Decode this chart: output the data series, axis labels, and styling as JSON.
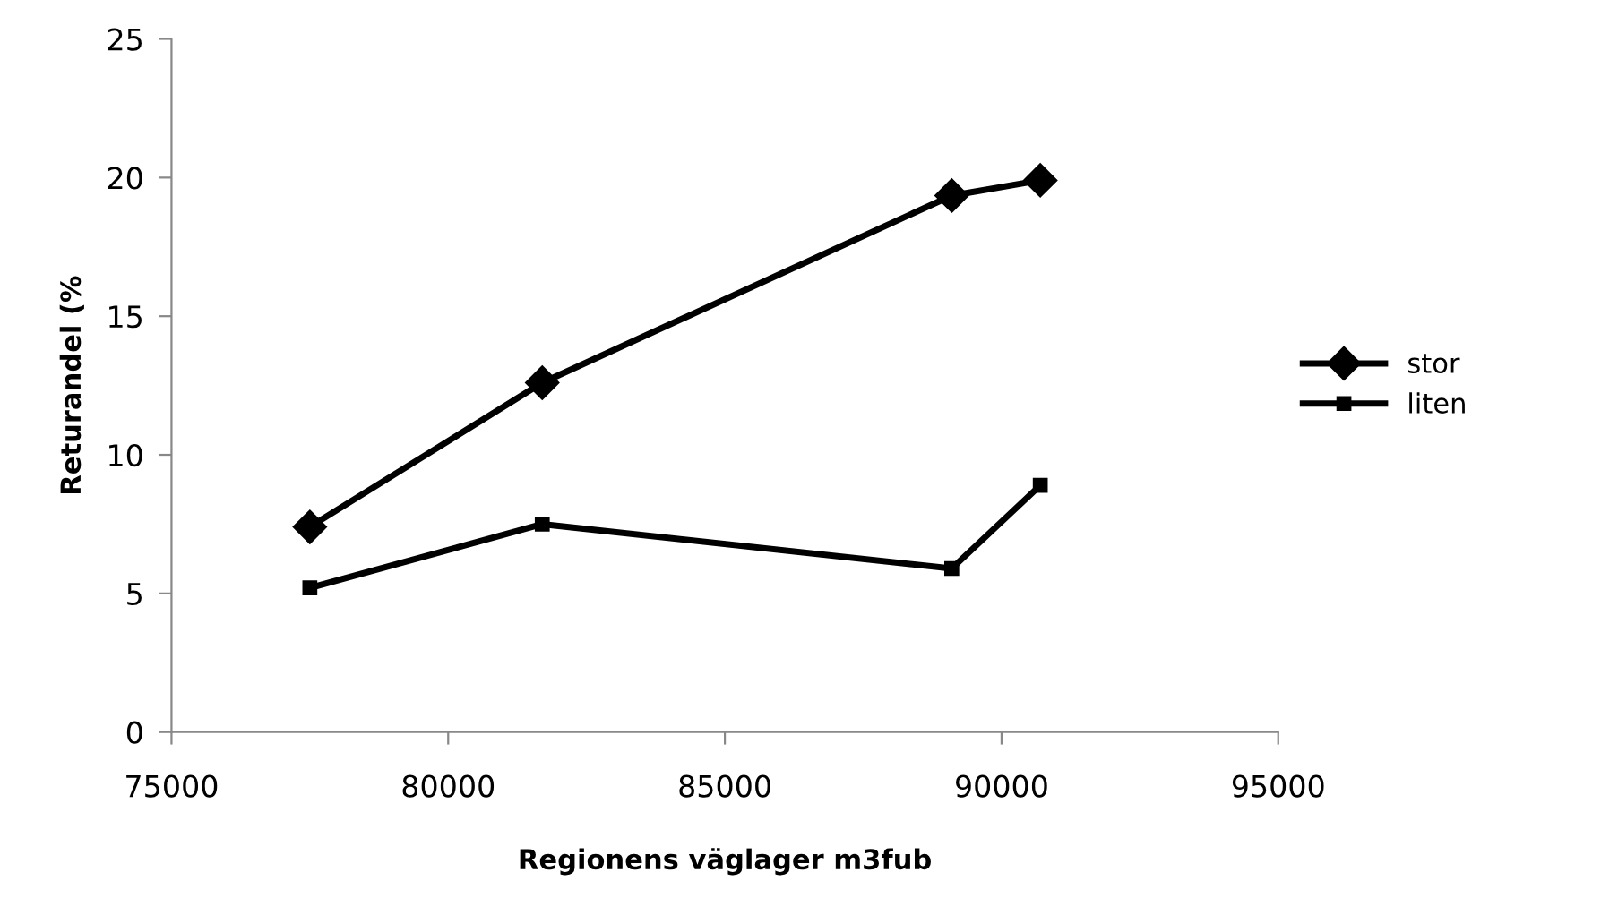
{
  "chart_data": {
    "type": "line",
    "xlabel": "Regionens väglager m3fub",
    "ylabel": "Returandel (%",
    "x": [
      77500,
      81700,
      89100,
      90700
    ],
    "series": [
      {
        "name": "stor",
        "color": "#000000",
        "marker": "diamond",
        "values": [
          7.4,
          12.6,
          19.35,
          19.9
        ]
      },
      {
        "name": "liten",
        "color": "#000000",
        "marker": "square",
        "values": [
          5.2,
          7.5,
          5.9,
          8.9
        ]
      }
    ],
    "xlim": [
      75000,
      95000
    ],
    "xticks": [
      75000,
      80000,
      85000,
      90000,
      95000
    ],
    "ylim": [
      0,
      25
    ],
    "yticks": [
      0,
      5,
      10,
      15,
      20,
      25
    ],
    "grid": false,
    "legend": "right",
    "line_style": "solid"
  }
}
